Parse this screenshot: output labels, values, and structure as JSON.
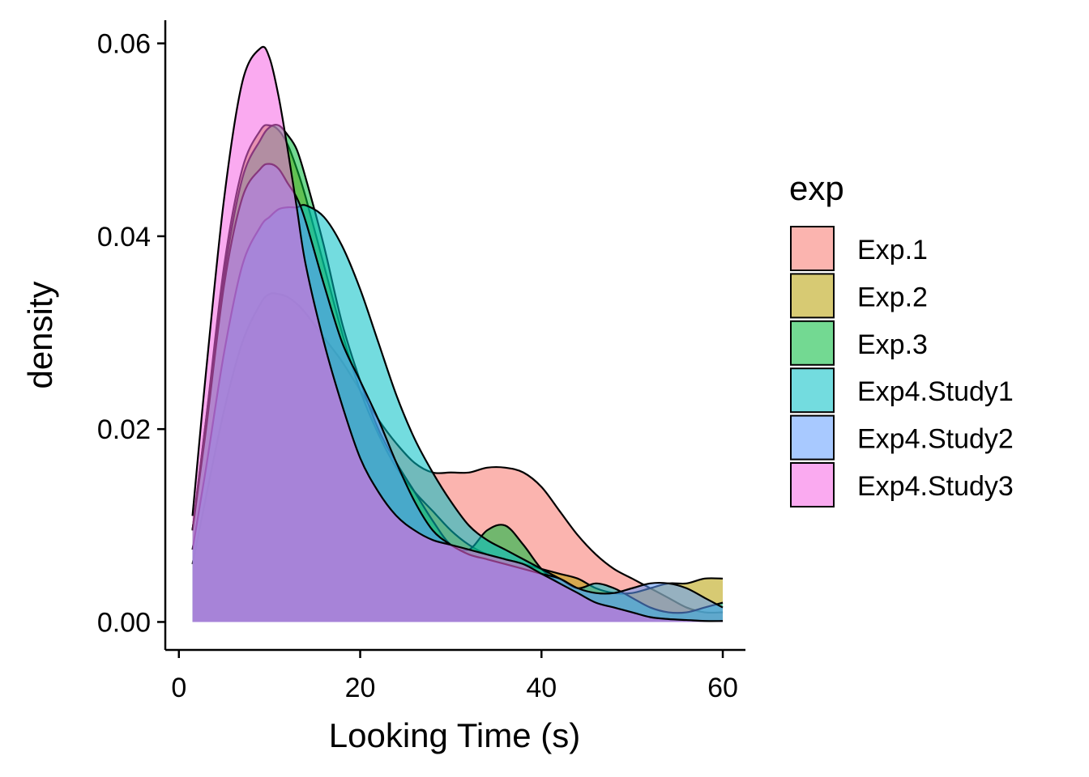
{
  "chart_data": {
    "type": "area",
    "subtype": "density",
    "title": "",
    "xlabel": "Looking Time (s)",
    "ylabel": "density",
    "xlim": [
      -1.5,
      62.5
    ],
    "ylim": [
      -0.0029,
      0.0624
    ],
    "x_ticks": [
      0,
      20,
      40,
      60
    ],
    "x_tick_labels": [
      "0",
      "20",
      "40",
      "60"
    ],
    "y_ticks": [
      0,
      0.02,
      0.04,
      0.06
    ],
    "y_tick_labels": [
      "0.00",
      "0.02",
      "0.04",
      "0.06"
    ],
    "grid": false,
    "fill_opacity": 0.55,
    "legend": {
      "title": "exp",
      "position": "right"
    },
    "x": [
      1.5,
      3,
      5,
      7,
      9,
      10,
      11,
      12,
      13,
      14,
      16,
      18,
      20,
      22,
      24,
      26,
      28,
      30,
      32,
      34,
      36,
      38,
      40,
      42,
      44,
      46,
      48,
      50,
      52,
      54,
      56,
      58,
      60
    ],
    "series": [
      {
        "name": "Exp.1",
        "color": "#F8766D",
        "values": [
          0.006,
          0.013,
          0.022,
          0.029,
          0.033,
          0.034,
          0.034,
          0.0337,
          0.033,
          0.032,
          0.0295,
          0.027,
          0.024,
          0.021,
          0.0185,
          0.0165,
          0.0155,
          0.0155,
          0.0155,
          0.016,
          0.016,
          0.0155,
          0.014,
          0.0115,
          0.009,
          0.007,
          0.0055,
          0.0045,
          0.0035,
          0.0025,
          0.0015,
          0.001,
          0.001
        ]
      },
      {
        "name": "Exp.2",
        "color": "#B79F00",
        "values": [
          0.0095,
          0.021,
          0.037,
          0.047,
          0.051,
          0.0515,
          0.051,
          0.0495,
          0.047,
          0.044,
          0.037,
          0.03,
          0.024,
          0.0195,
          0.016,
          0.0135,
          0.0115,
          0.0095,
          0.008,
          0.007,
          0.0065,
          0.006,
          0.0055,
          0.005,
          0.0045,
          0.0035,
          0.003,
          0.003,
          0.0035,
          0.004,
          0.004,
          0.0045,
          0.0045
        ]
      },
      {
        "name": "Exp.3",
        "color": "#00BA38",
        "values": [
          0.0095,
          0.021,
          0.036,
          0.046,
          0.05,
          0.0513,
          0.0515,
          0.0505,
          0.049,
          0.046,
          0.039,
          0.031,
          0.025,
          0.02,
          0.0165,
          0.0135,
          0.0105,
          0.008,
          0.0075,
          0.0095,
          0.01,
          0.008,
          0.0055,
          0.004,
          0.003,
          0.002,
          0.0015,
          0.001,
          0.0005,
          0.0003,
          0.0002,
          0.0001,
          0.0001
        ]
      },
      {
        "name": "Exp4.Study1",
        "color": "#00BFC4",
        "values": [
          0.0075,
          0.016,
          0.028,
          0.037,
          0.041,
          0.042,
          0.0428,
          0.043,
          0.043,
          0.0432,
          0.042,
          0.039,
          0.0345,
          0.029,
          0.0235,
          0.019,
          0.0155,
          0.0125,
          0.01,
          0.0085,
          0.0075,
          0.0065,
          0.0055,
          0.0045,
          0.0035,
          0.004,
          0.0035,
          0.0025,
          0.0015,
          0.001,
          0.001,
          0.0015,
          0.002
        ]
      },
      {
        "name": "Exp4.Study2",
        "color": "#619CFF",
        "values": [
          0.0095,
          0.02,
          0.035,
          0.044,
          0.047,
          0.0475,
          0.047,
          0.0455,
          0.044,
          0.0415,
          0.035,
          0.029,
          0.025,
          0.021,
          0.0165,
          0.0125,
          0.0095,
          0.008,
          0.007,
          0.0065,
          0.006,
          0.0055,
          0.005,
          0.0045,
          0.0035,
          0.003,
          0.003,
          0.0035,
          0.004,
          0.004,
          0.0035,
          0.0025,
          0.0015
        ]
      },
      {
        "name": "Exp4.Study3",
        "color": "#F564E3",
        "values": [
          0.011,
          0.026,
          0.044,
          0.056,
          0.0595,
          0.0585,
          0.0545,
          0.049,
          0.043,
          0.037,
          0.029,
          0.0225,
          0.017,
          0.0135,
          0.011,
          0.0095,
          0.0085,
          0.008,
          0.0075,
          0.007,
          0.0065,
          0.006,
          0.005,
          0.004,
          0.003,
          0.002,
          0.0015,
          0.001,
          0.0005,
          0.0003,
          0.0002,
          0.0001,
          0.0001
        ]
      }
    ]
  }
}
